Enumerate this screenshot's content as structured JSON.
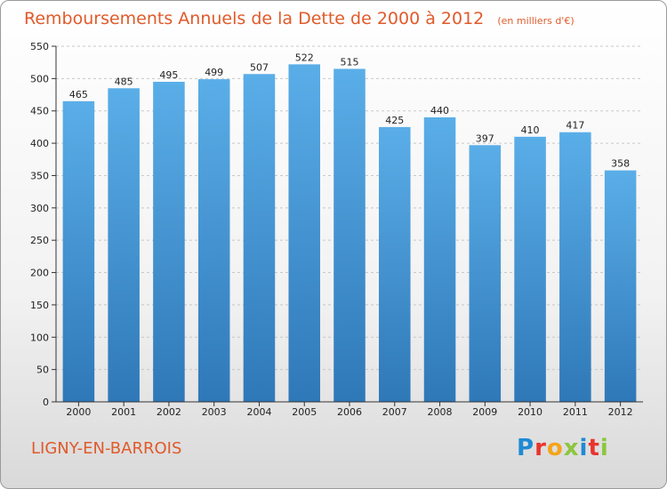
{
  "chart_data": {
    "type": "bar",
    "title": "Remboursements Annuels de la Dette de 2000 à 2012",
    "unit_note": "(en milliers d'€)",
    "categories": [
      "2000",
      "2001",
      "2002",
      "2003",
      "2004",
      "2005",
      "2006",
      "2007",
      "2008",
      "2009",
      "2010",
      "2011",
      "2012"
    ],
    "values": [
      465,
      485,
      495,
      499,
      507,
      522,
      515,
      425,
      440,
      397,
      410,
      417,
      358
    ],
    "ylim": [
      0,
      550
    ],
    "yticks": [
      0,
      50,
      100,
      150,
      200,
      250,
      300,
      350,
      400,
      450,
      500,
      550
    ],
    "xlabel": "",
    "ylabel": "",
    "grid": true
  },
  "footer": {
    "place_name": "LIGNY-EN-BARROIS",
    "logo_text": "Proxiti",
    "logo_colors": [
      "#1f8ad4",
      "#e8352e",
      "#f5a31a",
      "#8cc63f",
      "#1f8ad4",
      "#e8352e",
      "#8cc63f"
    ]
  },
  "colors": {
    "title": "#e05a2a",
    "bar_top": "#5aaee8",
    "bar_bottom": "#2f78b8",
    "grid": "#c8c8c8",
    "axis": "#333333"
  }
}
